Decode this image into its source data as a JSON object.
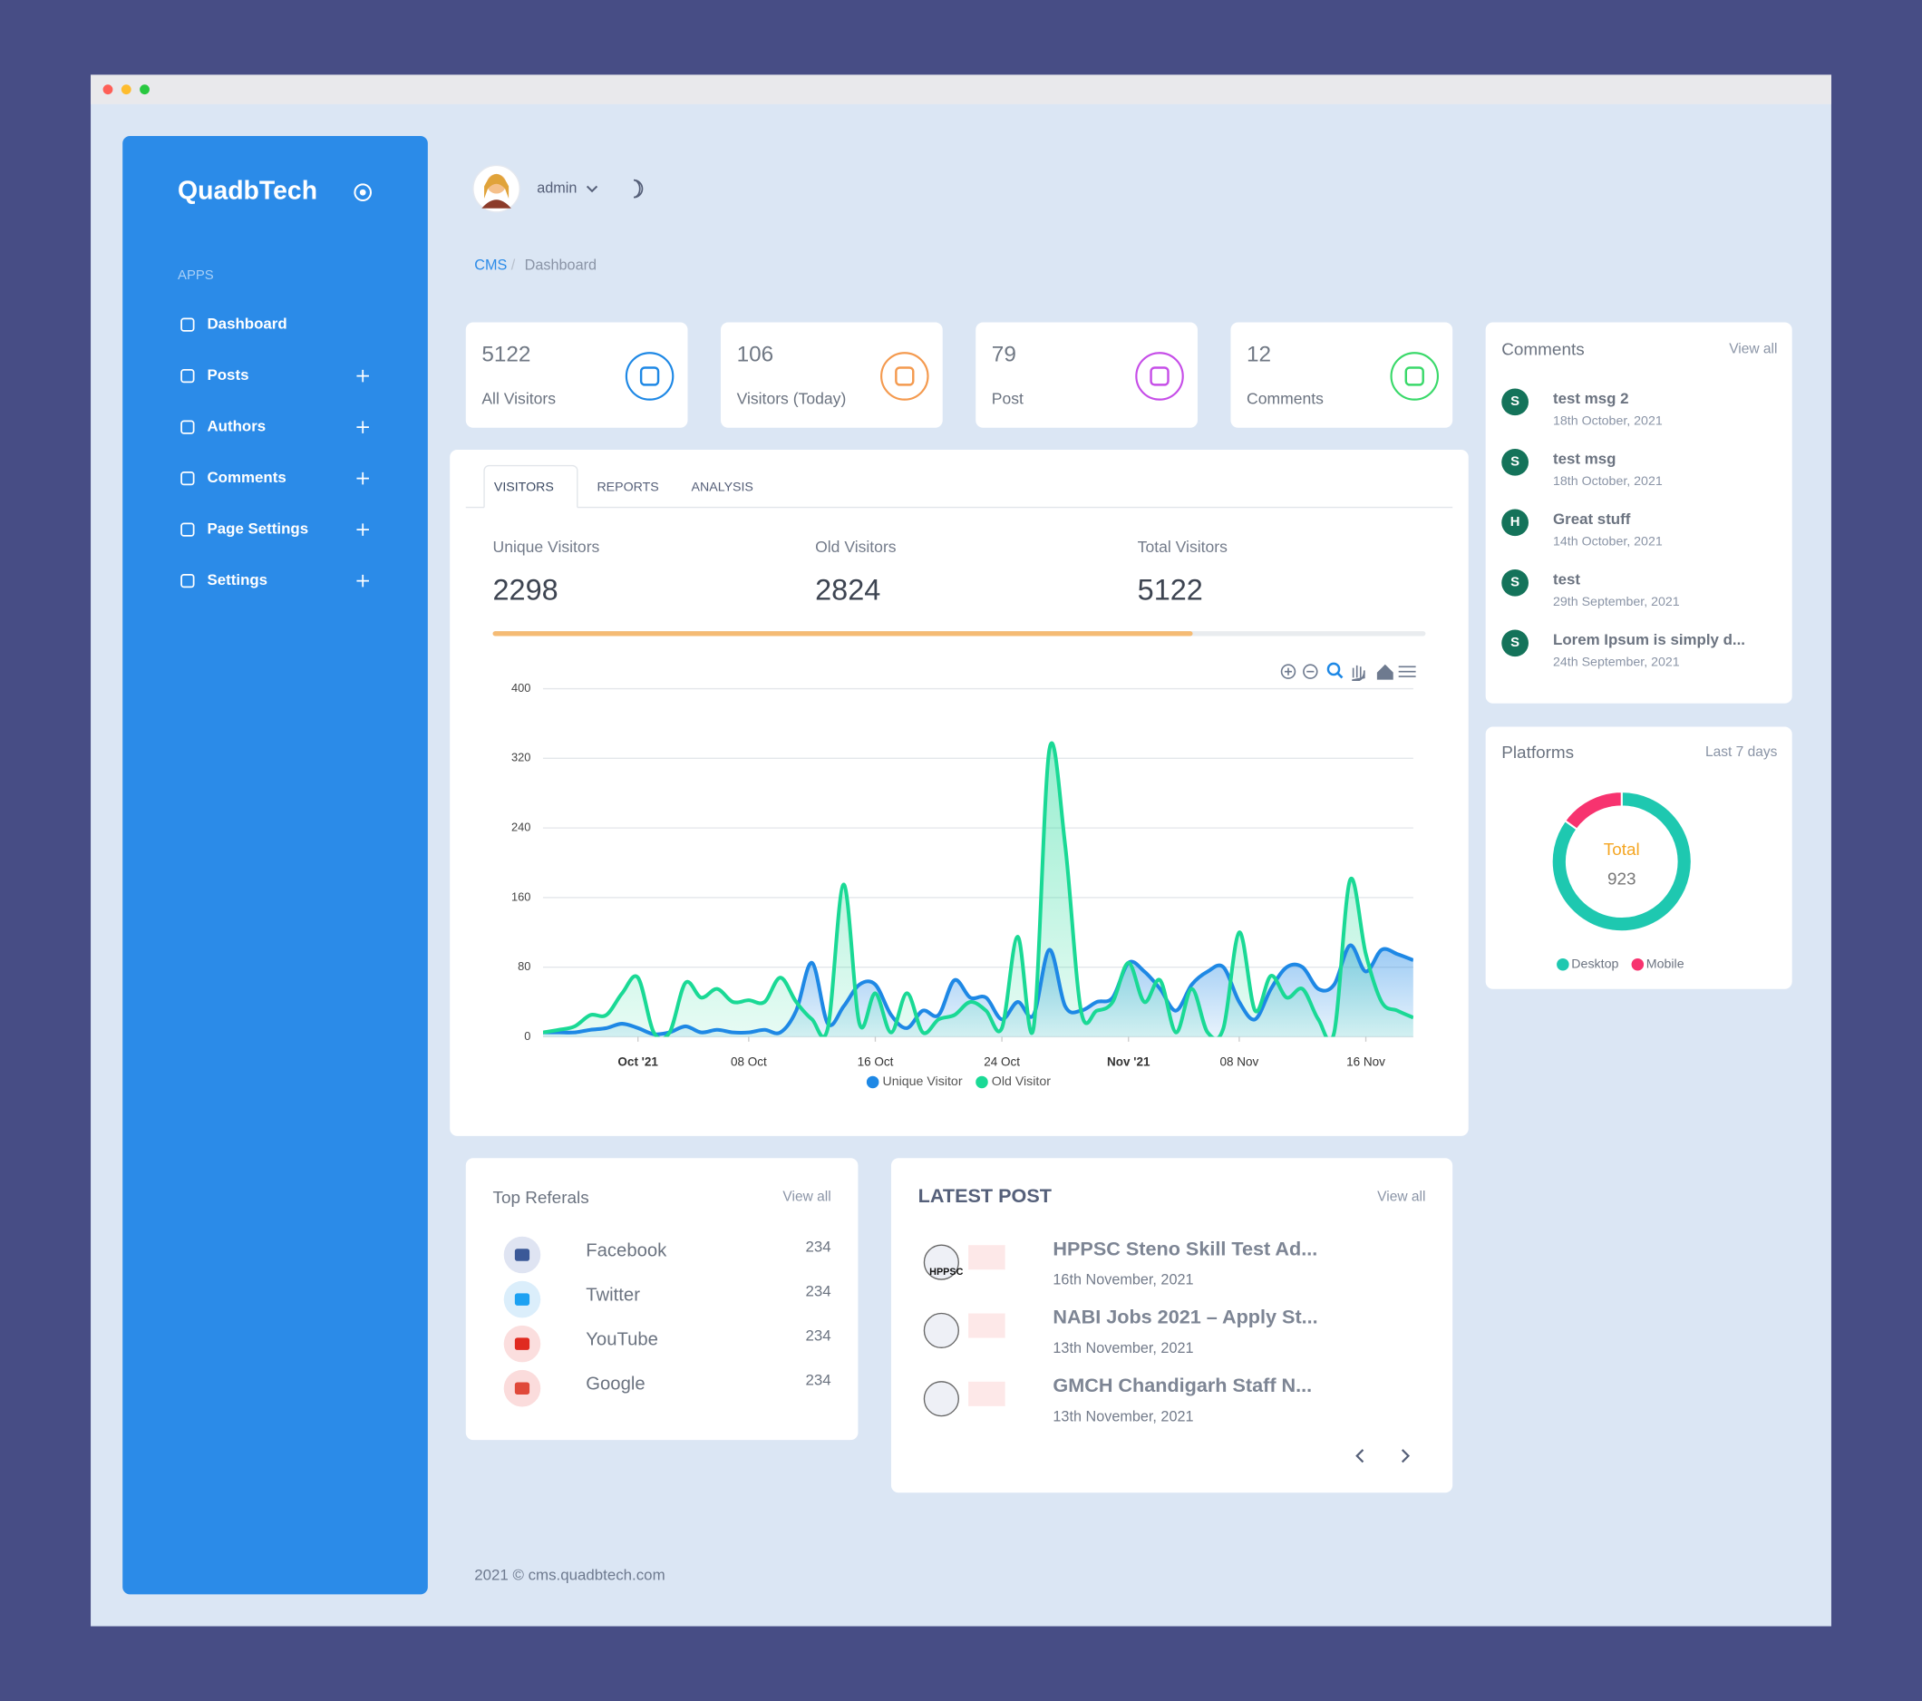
{
  "sidebar": {
    "brand": "QuadbTech",
    "section": "APPS",
    "menu": [
      "Dashboard",
      "Posts",
      "Authors",
      "Comments",
      "Page Settings",
      "Settings"
    ]
  },
  "header": {
    "user": "admin",
    "breadcrumb": [
      "CMS",
      "Dashboard"
    ]
  },
  "stats": [
    {
      "value": 5122,
      "label": "All Visitors"
    },
    {
      "value": 106,
      "label": "Visitors (Today)"
    },
    {
      "value": 79,
      "label": "Post"
    },
    {
      "value": 12,
      "label": "Comments"
    }
  ],
  "tabs": [
    "VISITORS",
    "REPORTS",
    "ANALYSIS"
  ],
  "summary": [
    {
      "label": "Unique Visitors",
      "value": 2298
    },
    {
      "label": "Old Visitors",
      "value": 2824
    },
    {
      "label": "Total Visitors",
      "value": 5122
    }
  ],
  "chart_data": [
    {
      "type": "area",
      "x": [
        "2021-09-25",
        "2021-09-26",
        "2021-09-27",
        "2021-09-28",
        "2021-09-29",
        "2021-09-30",
        "2021-10-01",
        "2021-10-02",
        "2021-10-03",
        "2021-10-04",
        "2021-10-05",
        "2021-10-06",
        "2021-10-07",
        "2021-10-08",
        "2021-10-09",
        "2021-10-10",
        "2021-10-11",
        "2021-10-12",
        "2021-10-13",
        "2021-10-14",
        "2021-10-15",
        "2021-10-16",
        "2021-10-17",
        "2021-10-18",
        "2021-10-19",
        "2021-10-20",
        "2021-10-21",
        "2021-10-22",
        "2021-10-23",
        "2021-10-24",
        "2021-10-25",
        "2021-10-26",
        "2021-10-27",
        "2021-10-28",
        "2021-10-29",
        "2021-10-30",
        "2021-10-31",
        "2021-11-01",
        "2021-11-02",
        "2021-11-03",
        "2021-11-04",
        "2021-11-05",
        "2021-11-06",
        "2021-11-07",
        "2021-11-08",
        "2021-11-09",
        "2021-11-10",
        "2021-11-11",
        "2021-11-12",
        "2021-11-13",
        "2021-11-14",
        "2021-11-15",
        "2021-11-16",
        "2021-11-17",
        "2021-11-18",
        "2021-11-19"
      ],
      "xlim": [
        "2021-09-25",
        "2021-11-19"
      ],
      "xticks": [
        {
          "value": "2021-10-01",
          "label": "Oct '21"
        },
        {
          "value": "2021-10-08",
          "label": "08 Oct"
        },
        {
          "value": "2021-10-16",
          "label": "16 Oct"
        },
        {
          "value": "2021-10-24",
          "label": "24 Oct"
        },
        {
          "value": "2021-11-01",
          "label": "Nov '21"
        },
        {
          "value": "2021-11-08",
          "label": "08 Nov"
        },
        {
          "value": "2021-11-16",
          "label": "16 Nov"
        }
      ],
      "ylim": [
        0,
        400
      ],
      "yticks": [
        0,
        80,
        160,
        240,
        320,
        400
      ],
      "grid": true,
      "series": [
        {
          "name": "Unique Visitor",
          "color": "#1e88e5",
          "values": [
            5,
            5,
            5,
            8,
            10,
            15,
            10,
            3,
            5,
            12,
            5,
            8,
            5,
            5,
            8,
            5,
            30,
            85,
            15,
            35,
            60,
            60,
            25,
            10,
            30,
            25,
            65,
            45,
            45,
            20,
            40,
            25,
            100,
            35,
            30,
            40,
            45,
            85,
            75,
            55,
            30,
            60,
            75,
            80,
            40,
            20,
            55,
            80,
            80,
            55,
            60,
            105,
            75,
            100,
            95,
            88
          ]
        },
        {
          "name": "Old Visitor",
          "color": "#1ad995",
          "values": [
            5,
            8,
            12,
            25,
            25,
            50,
            68,
            5,
            5,
            62,
            45,
            55,
            40,
            42,
            40,
            68,
            40,
            20,
            10,
            175,
            15,
            50,
            5,
            50,
            5,
            20,
            25,
            40,
            30,
            10,
            115,
            10,
            330,
            220,
            30,
            30,
            40,
            85,
            40,
            65,
            5,
            55,
            5,
            10,
            120,
            30,
            70,
            45,
            55,
            20,
            5,
            180,
            95,
            40,
            30,
            22
          ]
        }
      ]
    },
    {
      "type": "pie",
      "title": "Platforms",
      "subtitle": "Last 7 days",
      "center_label": "Total",
      "total": 923,
      "categories": [
        "Desktop",
        "Mobile"
      ],
      "values": [
        784,
        139
      ],
      "colors": [
        "#1ec8b0",
        "#f7336f"
      ]
    }
  ],
  "comments": {
    "title": "Comments",
    "view_all": "View all",
    "items": [
      {
        "initial": "S",
        "text": "test msg 2",
        "date": "18th October, 2021"
      },
      {
        "initial": "S",
        "text": "test msg",
        "date": "18th October, 2021"
      },
      {
        "initial": "H",
        "text": "Great stuff",
        "date": "14th October, 2021"
      },
      {
        "initial": "S",
        "text": "test",
        "date": "29th September, 2021"
      },
      {
        "initial": "S",
        "text": "Lorem Ipsum is simply d...",
        "date": "24th September, 2021"
      }
    ]
  },
  "referrals": {
    "title": "Top Referals",
    "view_all": "View all",
    "items": [
      {
        "name": "Facebook",
        "value": 234
      },
      {
        "name": "Twitter",
        "value": 234
      },
      {
        "name": "YouTube",
        "value": 234
      },
      {
        "name": "Google",
        "value": 234
      }
    ]
  },
  "latest": {
    "title": "LATEST POST",
    "view_all": "View all",
    "items": [
      {
        "title": "HPPSC Steno Skill Test Ad...",
        "date": "16th November, 2021",
        "thumb": "HPPSC"
      },
      {
        "title": "NABI Jobs 2021 – Apply St...",
        "date": "13th November, 2021"
      },
      {
        "title": "GMCH Chandigarh Staff N...",
        "date": "13th November, 2021"
      }
    ]
  },
  "footer": "2021 © cms.quadbtech.com"
}
